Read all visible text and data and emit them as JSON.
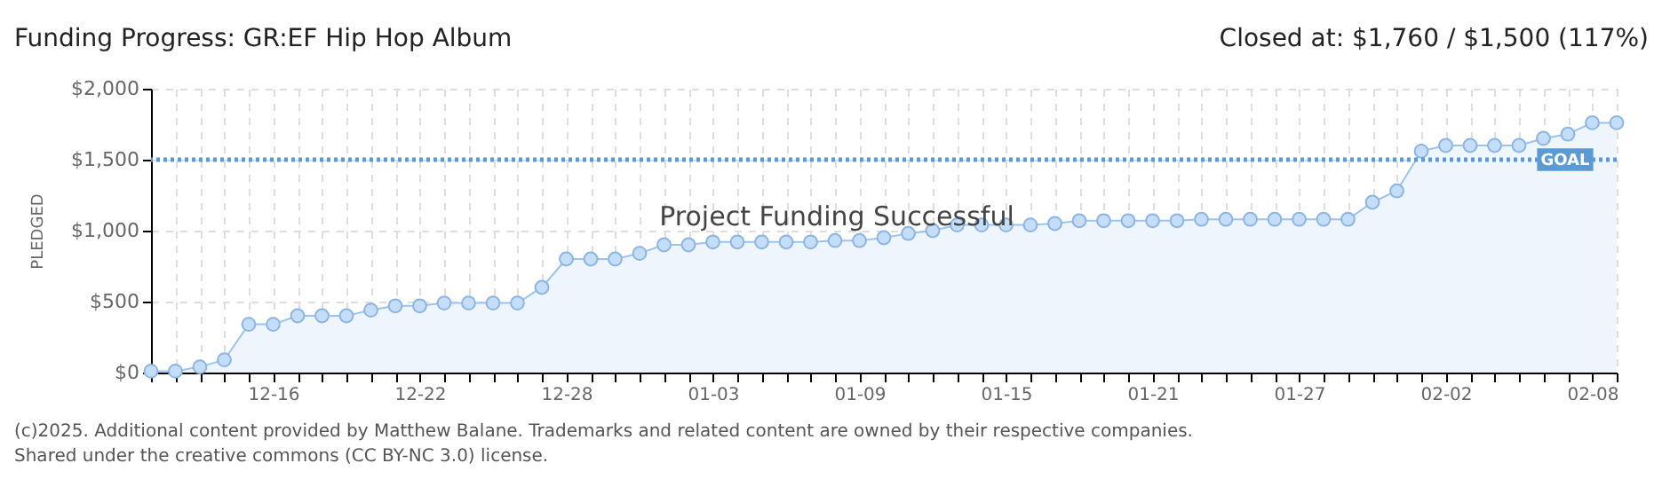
{
  "chart_data": {
    "type": "area",
    "title": "Funding Progress: GR:EF Hip Hop Album",
    "ylabel": "PLEDGED",
    "categories": [
      null,
      null,
      null,
      null,
      null,
      "12-16",
      null,
      null,
      null,
      null,
      null,
      "12-22",
      null,
      null,
      null,
      null,
      null,
      "12-28",
      null,
      null,
      null,
      null,
      null,
      "01-03",
      null,
      null,
      null,
      null,
      null,
      "01-09",
      null,
      null,
      null,
      null,
      null,
      "01-15",
      null,
      null,
      null,
      null,
      null,
      "01-21",
      null,
      null,
      null,
      null,
      null,
      "01-27",
      null,
      null,
      null,
      null,
      null,
      "02-02",
      null,
      null,
      null,
      null,
      null,
      "02-08",
      null
    ],
    "series": [
      {
        "color": "#9cc3ee",
        "values": [
          10,
          10,
          40,
          90,
          340,
          340,
          400,
          400,
          400,
          440,
          470,
          470,
          490,
          490,
          490,
          490,
          600,
          800,
          800,
          800,
          840,
          900,
          900,
          920,
          920,
          920,
          920,
          920,
          930,
          930,
          950,
          980,
          1000,
          1040,
          1040,
          1040,
          1040,
          1050,
          1070,
          1070,
          1070,
          1070,
          1070,
          1080,
          1080,
          1080,
          1080,
          1080,
          1080,
          1080,
          1200,
          1280,
          1560,
          1600,
          1600,
          1600,
          1600,
          1650,
          1680,
          1760,
          1760
        ]
      }
    ],
    "ylim": [
      0,
      2000
    ],
    "yticks": [
      {
        "value": 0,
        "label": "$0"
      },
      {
        "value": 500,
        "label": "$500"
      },
      {
        "value": 1000,
        "label": "$1,000"
      },
      {
        "value": 1500,
        "label": "$1,500"
      },
      {
        "value": 2000,
        "label": "$2,000"
      }
    ],
    "ref_lines": [
      {
        "axis": "y",
        "value": 1500,
        "label": "GOAL",
        "color": "#5b9bd5",
        "line_style": "dotted"
      }
    ],
    "annotations": [
      "Closed at: $1,760 / $1,500 (117%)",
      "Project Funding Successful",
      "(c)2025. Additional content provided by Matthew Balane. Trademarks and related content are owned by their respective companies.",
      "Shared under the creative commons (CC BY-NC 3.0) license."
    ],
    "grid": true,
    "marker": "circle",
    "line_style": "solid"
  }
}
